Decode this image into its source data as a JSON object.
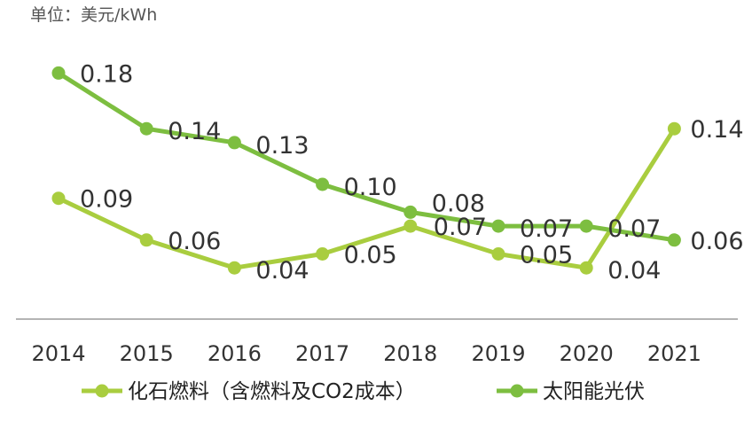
{
  "chart_data": {
    "type": "line",
    "unit_label": "单位：美元/kWh",
    "categories": [
      "2014",
      "2015",
      "2016",
      "2017",
      "2018",
      "2019",
      "2020",
      "2021"
    ],
    "ylim": [
      0,
      0.2
    ],
    "grid": false,
    "legend_position": "bottom",
    "series": [
      {
        "name": "化石燃料（含燃料及CO2成本）",
        "color": "#a9cd3f",
        "values": [
          0.09,
          0.06,
          0.04,
          0.05,
          0.07,
          0.05,
          0.04,
          0.14
        ],
        "labels": [
          "0.09",
          "0.06",
          "0.04",
          "0.05",
          "0.07",
          "0.05",
          "0.04",
          "0.14"
        ]
      },
      {
        "name": "太阳能光伏",
        "color": "#7dbe40",
        "values": [
          0.18,
          0.14,
          0.13,
          0.1,
          0.08,
          0.07,
          0.07,
          0.06
        ],
        "labels": [
          "0.18",
          "0.14",
          "0.13",
          "0.10",
          "0.08",
          "0.07",
          "0.07",
          "0.06"
        ]
      }
    ]
  }
}
